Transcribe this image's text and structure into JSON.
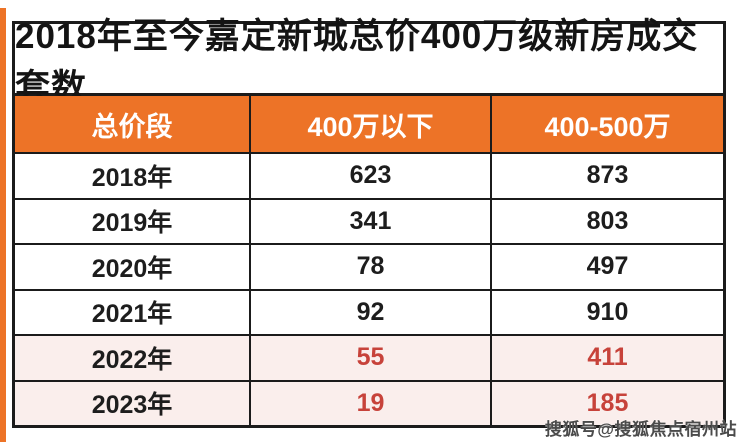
{
  "title": "2018年至今嘉定新城总价400万级新房成交套数",
  "table": {
    "headers": [
      "总价段",
      "400万以下",
      "400-500万"
    ],
    "rows": [
      {
        "cells": [
          "2018年",
          "623",
          "873"
        ],
        "highlight": false
      },
      {
        "cells": [
          "2019年",
          "341",
          "803"
        ],
        "highlight": false
      },
      {
        "cells": [
          "2020年",
          "78",
          "497"
        ],
        "highlight": false
      },
      {
        "cells": [
          "2021年",
          "92",
          "910"
        ],
        "highlight": false
      },
      {
        "cells": [
          "2022年",
          "55",
          "411"
        ],
        "highlight": true
      },
      {
        "cells": [
          "2023年",
          "19",
          "185"
        ],
        "highlight": true
      }
    ]
  },
  "watermark": "搜狐号@搜狐焦点宿州站",
  "colors": {
    "accent_orange": "#ed7327",
    "highlight_pink": "#faeeec",
    "highlight_red": "#c7423a",
    "border_black": "#1b1b1b"
  },
  "chart_data": {
    "type": "table",
    "title": "2018年至今嘉定新城总价400万级新房成交套数",
    "columns": [
      "总价段",
      "400万以下",
      "400-500万"
    ],
    "rows": [
      [
        "2018年",
        623,
        873
      ],
      [
        "2019年",
        341,
        803
      ],
      [
        "2020年",
        78,
        497
      ],
      [
        "2021年",
        92,
        910
      ],
      [
        "2022年",
        55,
        411
      ],
      [
        "2023年",
        19,
        185
      ]
    ],
    "highlighted_years": [
      "2022年",
      "2023年"
    ]
  }
}
